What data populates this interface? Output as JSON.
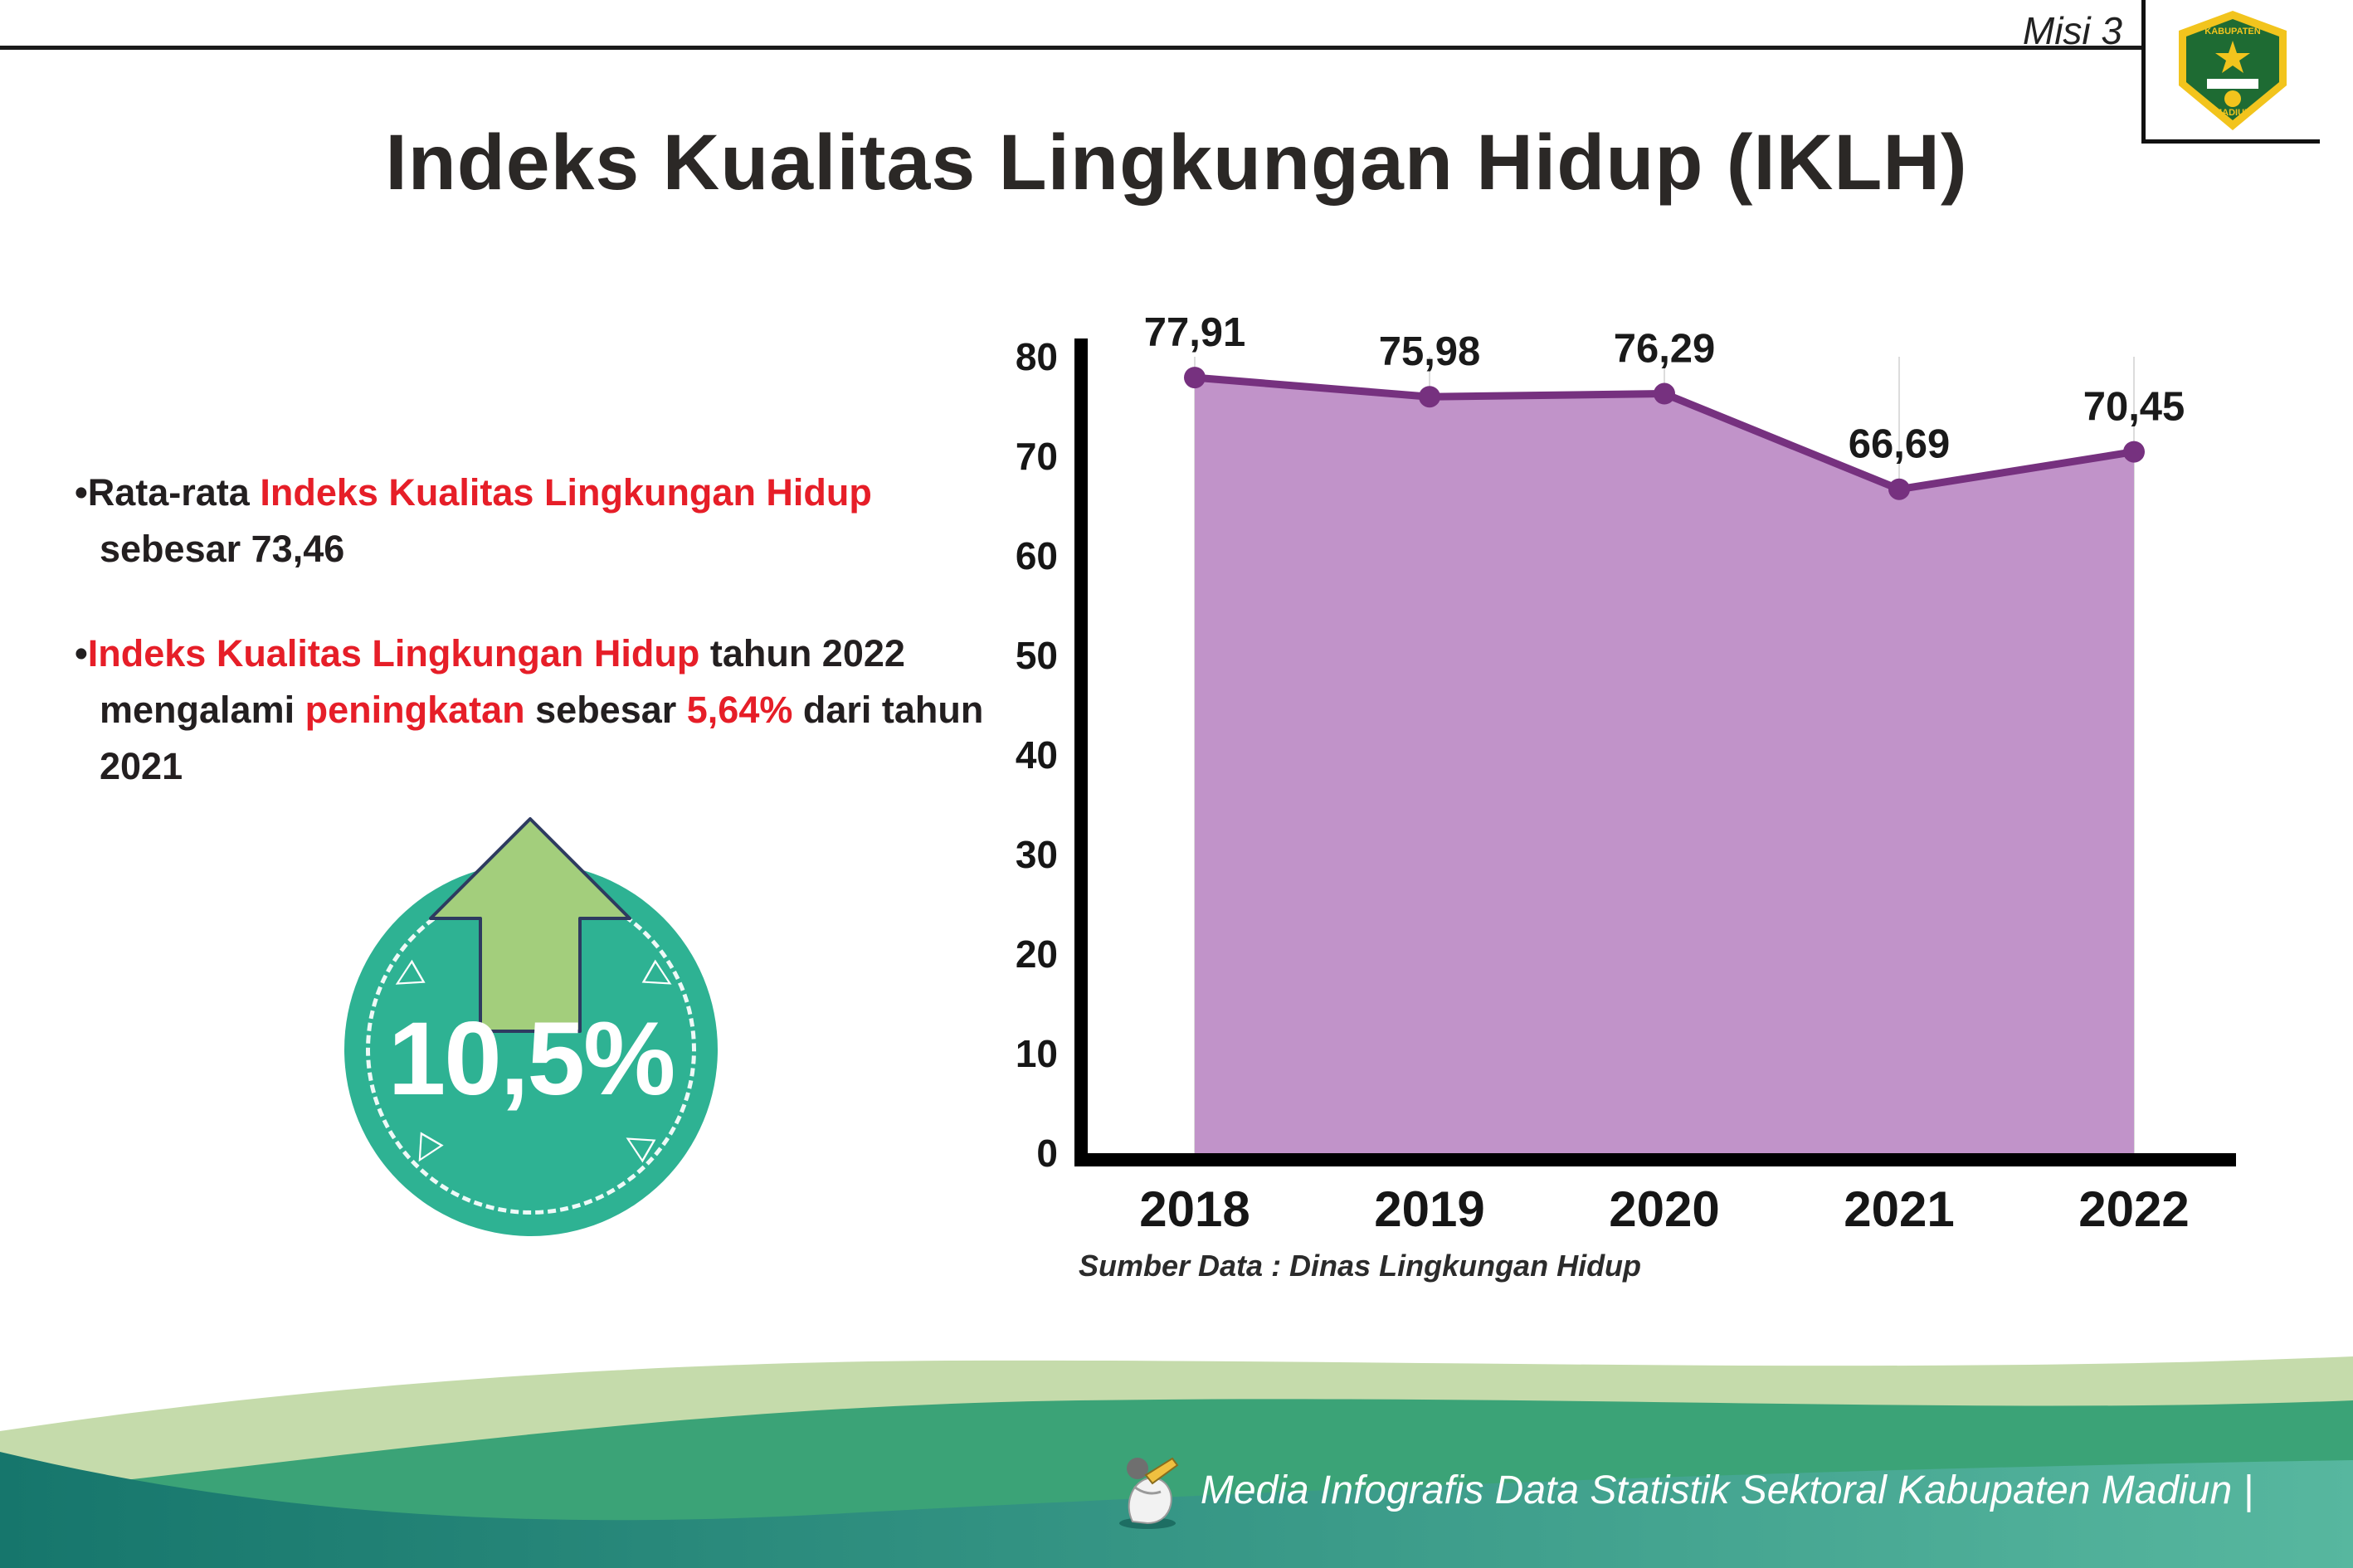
{
  "page": {
    "misi": "Misi 3",
    "title": "Indeks Kualitas Lingkungan Hidup (IKLH)"
  },
  "logo": {
    "text_top": "KABUPATEN",
    "text_bottom": "MADIUN"
  },
  "bullets": [
    {
      "marker": "•",
      "segments": [
        {
          "t": "Rata-rata ",
          "red": false
        },
        {
          "t": "Indeks Kualitas Lingkungan Hidup",
          "red": true
        },
        {
          "t": " sebesar 73,46",
          "red": false
        }
      ]
    },
    {
      "marker": "•",
      "segments": [
        {
          "t": "Indeks Kualitas Lingkungan Hidup",
          "red": true
        },
        {
          "t": " tahun 2022 mengalami ",
          "red": false
        },
        {
          "t": "peningkatan",
          "red": true
        },
        {
          "t": " sebesar ",
          "red": false
        },
        {
          "t": "5,64%",
          "red": true
        },
        {
          "t": " dari tahun 2021",
          "red": false
        }
      ]
    }
  ],
  "badge": {
    "value": "10,5%",
    "circle_color": "#2eb293",
    "arrow_color": "#a3ce7c"
  },
  "chart_data": {
    "type": "area",
    "title": "",
    "categories": [
      "2018",
      "2019",
      "2020",
      "2021",
      "2022"
    ],
    "values": [
      77.91,
      75.98,
      76.29,
      66.69,
      70.45
    ],
    "value_labels": [
      "77,91",
      "75,98",
      "76,29",
      "66,69",
      "70,45"
    ],
    "xlabel": "",
    "ylabel": "",
    "ylim": [
      0,
      80
    ],
    "yticks": [
      0,
      10,
      20,
      30,
      40,
      50,
      60,
      70,
      80
    ],
    "grid": true,
    "legend": "none",
    "line_color": "#76317f",
    "fill_color": "#c193c9",
    "axis_color": "#000000",
    "source": "Sumber Data : Dinas Lingkungan Hidup"
  },
  "footer": {
    "credit": "Media Infografis Data Statistik Sektoral Kabupaten Madiun |"
  }
}
